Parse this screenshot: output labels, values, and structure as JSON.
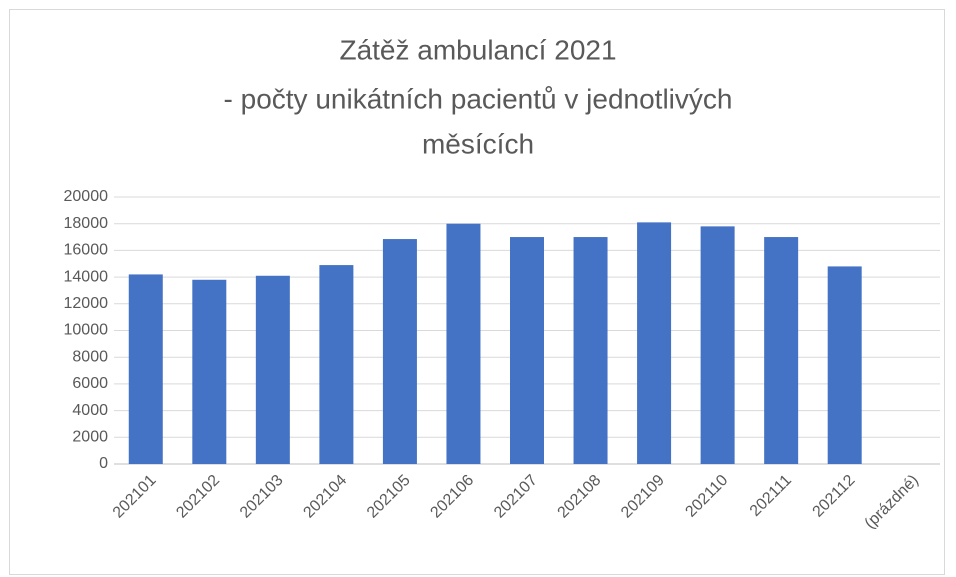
{
  "chart_data": {
    "type": "bar",
    "title": [
      "Zátěž  ambulancí 2021",
      "- počty unikátních pacientů v jednotlivých",
      "měsících"
    ],
    "categories": [
      "202101",
      "202102",
      "202103",
      "202104",
      "202105",
      "202106",
      "202107",
      "202108",
      "202109",
      "202110",
      "202111",
      "202112",
      "(prázdné)"
    ],
    "values": [
      14200,
      13800,
      14100,
      14900,
      16850,
      18000,
      17000,
      17000,
      18100,
      17800,
      17000,
      14800,
      null
    ],
    "color": "#4472c4",
    "ylim": [
      0,
      20000
    ],
    "yticks": [
      0,
      2000,
      4000,
      6000,
      8000,
      10000,
      12000,
      14000,
      16000,
      18000,
      20000
    ],
    "grid": true
  }
}
